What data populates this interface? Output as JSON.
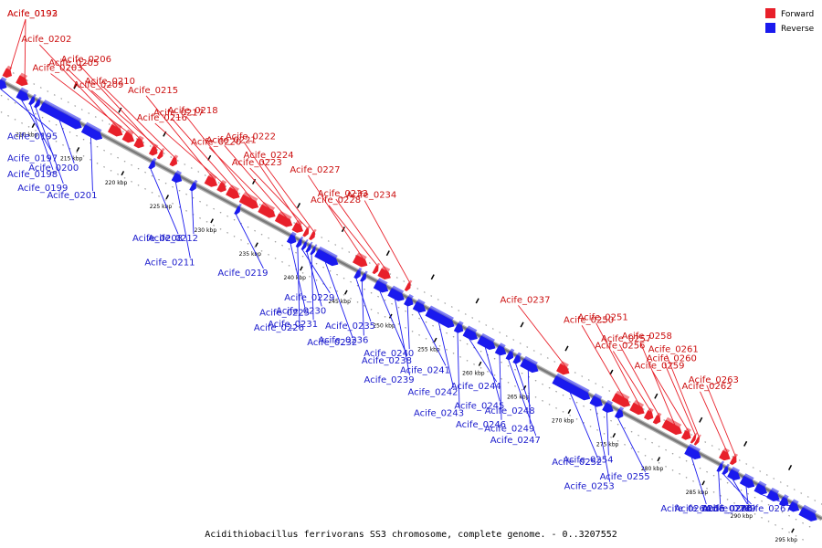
{
  "title": "Acidithiobacillus ferrivorans SS3 chromosome, complete genome. - 0..3207552",
  "colors": {
    "forward": "#e8202a",
    "reverse": "#1a1aee",
    "backbone": "#7a7a7a"
  },
  "legend": [
    {
      "label": "Forward",
      "color": "#e8202a"
    },
    {
      "label": "Reverse",
      "color": "#1a1aee"
    }
  ],
  "scale": {
    "start_kbp": 205,
    "end_kbp": 297
  },
  "ticks": [
    {
      "kbp": 210,
      "label": "210 kbp"
    },
    {
      "kbp": 215,
      "label": "215 kbp"
    },
    {
      "kbp": 220,
      "label": "220 kbp"
    },
    {
      "kbp": 225,
      "label": "225 kbp"
    },
    {
      "kbp": 230,
      "label": "230 kbp"
    },
    {
      "kbp": 235,
      "label": "235 kbp"
    },
    {
      "kbp": 240,
      "label": "240 kbp"
    },
    {
      "kbp": 245,
      "label": "245 kbp"
    },
    {
      "kbp": 250,
      "label": "250 kbp"
    },
    {
      "kbp": 255,
      "label": "255 kbp"
    },
    {
      "kbp": 260,
      "label": "260 kbp"
    },
    {
      "kbp": 265,
      "label": "265 kbp"
    },
    {
      "kbp": 270,
      "label": "270 kbp"
    },
    {
      "kbp": 275,
      "label": "275 kbp"
    },
    {
      "kbp": 280,
      "label": "280 kbp"
    },
    {
      "kbp": 285,
      "label": "285 kbp"
    },
    {
      "kbp": 290,
      "label": "290 kbp"
    },
    {
      "kbp": 295,
      "label": "295 kbp"
    }
  ],
  "genes": [
    {
      "name": "Acife_0192",
      "strand": "forward",
      "start_kbp": 205.0,
      "end_kbp": 205.8
    },
    {
      "name": "Acife_0193",
      "strand": "forward",
      "start_kbp": 206.5,
      "end_kbp": 207.6
    },
    {
      "name": "Acife_0195",
      "strand": "reverse",
      "start_kbp": 205.0,
      "end_kbp": 205.9
    },
    {
      "name": "Acife_0197",
      "strand": "reverse",
      "start_kbp": 207.2,
      "end_kbp": 208.4
    },
    {
      "name": "Acife_0198",
      "strand": "reverse",
      "start_kbp": 208.6,
      "end_kbp": 209.0
    },
    {
      "name": "Acife_0199",
      "strand": "reverse",
      "start_kbp": 209.2,
      "end_kbp": 209.6
    },
    {
      "name": "Acife_0200",
      "strand": "reverse",
      "start_kbp": 209.8,
      "end_kbp": 214.3
    },
    {
      "name": "Acife_0201",
      "strand": "reverse",
      "start_kbp": 214.5,
      "end_kbp": 216.6
    },
    {
      "name": "Acife_0202",
      "strand": "forward",
      "start_kbp": 216.8,
      "end_kbp": 218.2
    },
    {
      "name": "Acife_0203",
      "strand": "forward",
      "start_kbp": 218.4,
      "end_kbp": 219.5
    },
    {
      "name": "Acife_0205",
      "strand": "forward",
      "start_kbp": 219.7,
      "end_kbp": 220.6
    },
    {
      "name": "Acife_0206",
      "strand": "forward",
      "start_kbp": 221.4,
      "end_kbp": 222.1
    },
    {
      "name": "Acife_0209",
      "strand": "forward",
      "start_kbp": 222.3,
      "end_kbp": 222.7
    },
    {
      "name": "Acife_0208",
      "strand": "reverse",
      "start_kbp": 222.0,
      "end_kbp": 222.5
    },
    {
      "name": "Acife_0210",
      "strand": "forward",
      "start_kbp": 223.7,
      "end_kbp": 224.3
    },
    {
      "name": "Acife_0211",
      "strand": "reverse",
      "start_kbp": 224.6,
      "end_kbp": 225.5
    },
    {
      "name": "Acife_0212",
      "strand": "reverse",
      "start_kbp": 226.6,
      "end_kbp": 227.1
    },
    {
      "name": "Acife_0215",
      "strand": "forward",
      "start_kbp": 227.6,
      "end_kbp": 228.8
    },
    {
      "name": "Acife_0216",
      "strand": "forward",
      "start_kbp": 229.0,
      "end_kbp": 229.8
    },
    {
      "name": "Acife_0217",
      "strand": "forward",
      "start_kbp": 230.0,
      "end_kbp": 231.3
    },
    {
      "name": "Acife_0218",
      "strand": "forward",
      "start_kbp": 231.5,
      "end_kbp": 233.4
    },
    {
      "name": "Acife_0219",
      "strand": "reverse",
      "start_kbp": 231.6,
      "end_kbp": 232.0
    },
    {
      "name": "Acife_0220",
      "strand": "forward",
      "start_kbp": 233.6,
      "end_kbp": 235.3
    },
    {
      "name": "Acife_0221",
      "strand": "forward",
      "start_kbp": 235.5,
      "end_kbp": 237.2
    },
    {
      "name": "Acife_0222",
      "strand": "forward",
      "start_kbp": 237.4,
      "end_kbp": 238.4
    },
    {
      "name": "Acife_0223",
      "strand": "forward",
      "start_kbp": 238.6,
      "end_kbp": 239.0
    },
    {
      "name": "Acife_0225",
      "strand": "reverse",
      "start_kbp": 237.5,
      "end_kbp": 238.3
    },
    {
      "name": "Acife_0224",
      "strand": "forward",
      "start_kbp": 239.3,
      "end_kbp": 239.7
    },
    {
      "name": "Acife_0226",
      "strand": "reverse",
      "start_kbp": 238.5,
      "end_kbp": 238.9
    },
    {
      "name": "Acife_0229",
      "strand": "reverse",
      "start_kbp": 239.1,
      "end_kbp": 239.4
    },
    {
      "name": "Acife_0230",
      "strand": "reverse",
      "start_kbp": 239.6,
      "end_kbp": 239.9
    },
    {
      "name": "Acife_0231",
      "strand": "reverse",
      "start_kbp": 240.1,
      "end_kbp": 240.4
    },
    {
      "name": "Acife_0232",
      "strand": "reverse",
      "start_kbp": 240.6,
      "end_kbp": 243.0
    },
    {
      "name": "Acife_0227",
      "strand": "forward",
      "start_kbp": 244.2,
      "end_kbp": 245.6
    },
    {
      "name": "Acife_0228",
      "strand": "forward",
      "start_kbp": 246.4,
      "end_kbp": 246.8
    },
    {
      "name": "Acife_0235",
      "strand": "reverse",
      "start_kbp": 245.0,
      "end_kbp": 245.5
    },
    {
      "name": "Acife_0236",
      "strand": "reverse",
      "start_kbp": 245.7,
      "end_kbp": 246.1
    },
    {
      "name": "Acife_0233",
      "strand": "forward",
      "start_kbp": 247.0,
      "end_kbp": 248.2
    },
    {
      "name": "Acife_0238",
      "strand": "reverse",
      "start_kbp": 247.2,
      "end_kbp": 248.6
    },
    {
      "name": "Acife_0239",
      "strand": "reverse",
      "start_kbp": 248.8,
      "end_kbp": 250.4
    },
    {
      "name": "Acife_0240",
      "strand": "reverse",
      "start_kbp": 250.6,
      "end_kbp": 251.4
    },
    {
      "name": "Acife_0241",
      "strand": "reverse",
      "start_kbp": 251.6,
      "end_kbp": 252.8
    },
    {
      "name": "Acife_0242",
      "strand": "reverse",
      "start_kbp": 253.0,
      "end_kbp": 256.0
    },
    {
      "name": "Acife_0234",
      "strand": "forward",
      "start_kbp": 250.0,
      "end_kbp": 250.4
    },
    {
      "name": "Acife_0243",
      "strand": "reverse",
      "start_kbp": 256.2,
      "end_kbp": 257.0
    },
    {
      "name": "Acife_0244",
      "strand": "reverse",
      "start_kbp": 257.2,
      "end_kbp": 258.6
    },
    {
      "name": "Acife_0245",
      "strand": "reverse",
      "start_kbp": 258.8,
      "end_kbp": 260.6
    },
    {
      "name": "Acife_0246",
      "strand": "reverse",
      "start_kbp": 260.8,
      "end_kbp": 261.8
    },
    {
      "name": "Acife_0247",
      "strand": "reverse",
      "start_kbp": 262.0,
      "end_kbp": 262.6
    },
    {
      "name": "Acife_0248",
      "strand": "reverse",
      "start_kbp": 262.8,
      "end_kbp": 263.4
    },
    {
      "name": "Acife_0249",
      "strand": "reverse",
      "start_kbp": 263.6,
      "end_kbp": 265.4
    },
    {
      "name": "Acife_0237",
      "strand": "forward",
      "start_kbp": 267.0,
      "end_kbp": 268.2
    },
    {
      "name": "Acife_0252",
      "strand": "reverse",
      "start_kbp": 267.2,
      "end_kbp": 271.2
    },
    {
      "name": "Acife_0253",
      "strand": "reverse",
      "start_kbp": 271.4,
      "end_kbp": 272.6
    },
    {
      "name": "Acife_0254",
      "strand": "reverse",
      "start_kbp": 272.8,
      "end_kbp": 273.8
    },
    {
      "name": "Acife_0255",
      "strand": "reverse",
      "start_kbp": 274.2,
      "end_kbp": 274.9
    },
    {
      "name": "Acife_0250",
      "strand": "forward",
      "start_kbp": 273.2,
      "end_kbp": 275.0
    },
    {
      "name": "Acife_0251",
      "strand": "forward",
      "start_kbp": 275.2,
      "end_kbp": 276.6
    },
    {
      "name": "Acife_0256",
      "strand": "forward",
      "start_kbp": 276.8,
      "end_kbp": 277.6
    },
    {
      "name": "Acife_0257",
      "strand": "forward",
      "start_kbp": 277.8,
      "end_kbp": 278.4
    },
    {
      "name": "Acife_0258",
      "strand": "forward",
      "start_kbp": 278.8,
      "end_kbp": 280.8
    },
    {
      "name": "Acife_0259",
      "strand": "forward",
      "start_kbp": 281.0,
      "end_kbp": 281.8
    },
    {
      "name": "Acife_0260",
      "strand": "forward",
      "start_kbp": 282.0,
      "end_kbp": 282.3
    },
    {
      "name": "Acife_0261",
      "strand": "forward",
      "start_kbp": 282.4,
      "end_kbp": 282.7
    },
    {
      "name": "Acife_0264",
      "strand": "reverse",
      "start_kbp": 282.0,
      "end_kbp": 283.6
    },
    {
      "name": "Acife_0262",
      "strand": "forward",
      "start_kbp": 285.2,
      "end_kbp": 286.2
    },
    {
      "name": "Acife_0263",
      "strand": "forward",
      "start_kbp": 286.4,
      "end_kbp": 286.9
    },
    {
      "name": "Acife_0265",
      "strand": "reverse",
      "start_kbp": 285.6,
      "end_kbp": 286.0
    },
    {
      "name": "Acife_0269",
      "strand": "reverse",
      "start_kbp": 286.2,
      "end_kbp": 286.6
    },
    {
      "name": "Acife_0270",
      "strand": "reverse",
      "start_kbp": 286.8,
      "end_kbp": 288.0
    },
    {
      "name": "Acife_0266",
      "strand": "reverse",
      "start_kbp": 288.2,
      "end_kbp": 289.6
    },
    {
      "name": "Acife_0267",
      "strand": "reverse",
      "start_kbp": 289.8,
      "end_kbp": 291.0
    },
    {
      "name": "",
      "strand": "reverse",
      "start_kbp": 291.2,
      "end_kbp": 292.4
    },
    {
      "name": "",
      "strand": "reverse",
      "start_kbp": 292.6,
      "end_kbp": 293.4
    },
    {
      "name": "",
      "strand": "reverse",
      "start_kbp": 293.6,
      "end_kbp": 294.6
    },
    {
      "name": "",
      "strand": "reverse",
      "start_kbp": 294.8,
      "end_kbp": 296.6
    }
  ]
}
